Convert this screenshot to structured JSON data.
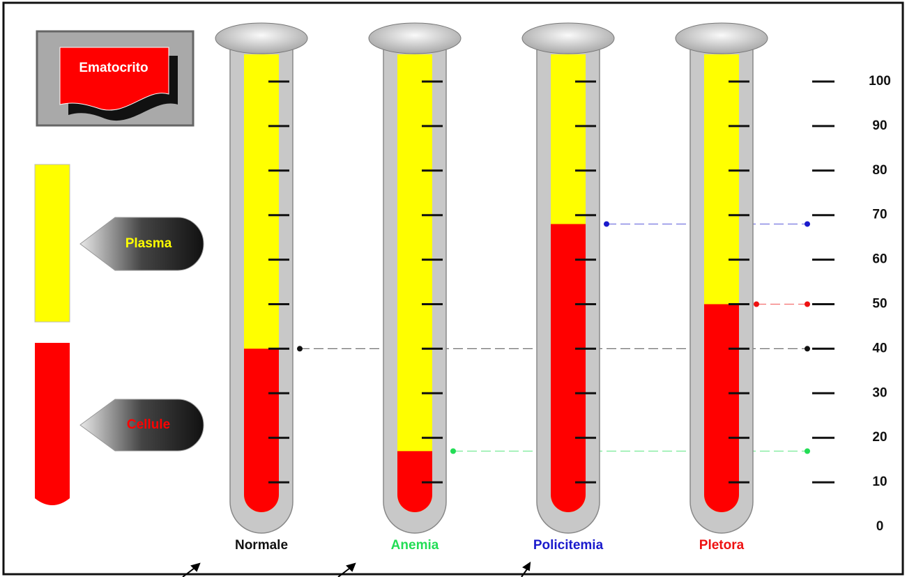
{
  "chart_data": {
    "type": "tubes",
    "title": "Ematocrito",
    "categories": [
      "Normale",
      "Anemia",
      "Policitemia",
      "Pletora"
    ],
    "category_colors": [
      "#111111",
      "#22dd55",
      "#1a1acc",
      "#ee1111"
    ],
    "series": [
      {
        "name": "Cellule",
        "color": "#ff0000",
        "values": [
          40,
          17,
          68,
          50
        ]
      }
    ],
    "plasma": {
      "name": "Plasma",
      "color": "#ffff00"
    },
    "ylim": [
      0,
      100
    ],
    "yticks": [
      0,
      10,
      20,
      30,
      40,
      50,
      60,
      70,
      80,
      90,
      100
    ]
  }
}
